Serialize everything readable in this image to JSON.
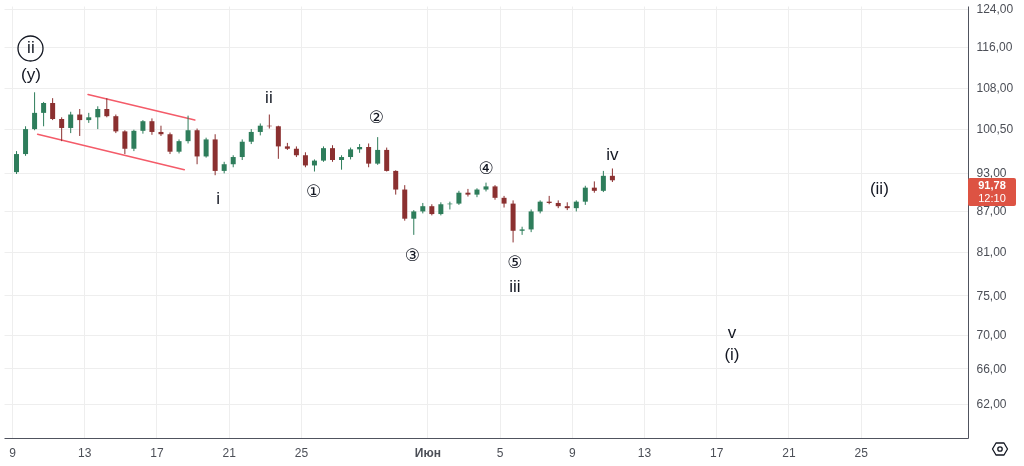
{
  "chart_data": {
    "type": "candlestick",
    "x": [
      "--05-09T06:00",
      "--05-09T18:00",
      "--05-10T06:00",
      "--05-10T18:00",
      "--05-11T06:00",
      "--05-11T18:00",
      "--05-12T06:00",
      "--05-12T18:00",
      "--05-13T06:00",
      "--05-13T18:00",
      "--05-14T06:00",
      "--05-14T18:00",
      "--05-15T06:00",
      "--05-15T18:00",
      "--05-16T06:00",
      "--05-16T18:00",
      "--05-17T06:00",
      "--05-17T18:00",
      "--05-18T06:00",
      "--05-18T18:00",
      "--05-19T06:00",
      "--05-19T18:00",
      "--05-20T06:00",
      "--05-20T18:00",
      "--05-21T06:00",
      "--05-21T18:00",
      "--05-22T06:00",
      "--05-22T18:00",
      "--05-23T06:00",
      "--05-23T18:00",
      "--05-24T06:00",
      "--05-24T18:00",
      "--05-25T06:00",
      "--05-25T18:00",
      "--05-26T06:00",
      "--05-26T18:00",
      "--05-27T06:00",
      "--05-27T18:00",
      "--05-28T06:00",
      "--05-28T18:00",
      "--05-29T06:00",
      "--05-29T18:00",
      "--05-30T06:00",
      "--05-30T18:00",
      "--05-31T06:00",
      "--05-31T18:00",
      "--06-01T06:00",
      "--06-01T18:00",
      "--06-02T06:00",
      "--06-02T18:00",
      "--06-03T06:00",
      "--06-03T18:00",
      "--06-04T06:00",
      "--06-04T18:00",
      "--06-05T06:00",
      "--06-05T18:00",
      "--06-06T06:00",
      "--06-06T18:00",
      "--06-07T06:00",
      "--06-07T18:00",
      "--06-08T06:00",
      "--06-08T18:00",
      "--06-09T06:00",
      "--06-09T18:00",
      "--06-10T06:00",
      "--06-10T18:00",
      "--06-11T06:00"
    ],
    "ohlc": [
      [
        93.1,
        96.6,
        92.8,
        96.1
      ],
      [
        96.1,
        100.9,
        95.8,
        100.4
      ],
      [
        100.4,
        107.1,
        100.2,
        103.3
      ],
      [
        103.3,
        105.3,
        100.9,
        105.1
      ],
      [
        105.1,
        106.0,
        102.0,
        102.2
      ],
      [
        102.2,
        102.5,
        98.3,
        100.6
      ],
      [
        100.6,
        103.5,
        99.7,
        103.0
      ],
      [
        103.0,
        104.0,
        99.2,
        102.0
      ],
      [
        102.0,
        103.3,
        101.5,
        102.5
      ],
      [
        102.5,
        104.5,
        100.4,
        104.0
      ],
      [
        104.0,
        106.0,
        102.5,
        102.7
      ],
      [
        102.7,
        103.0,
        99.7,
        100.0
      ],
      [
        100.0,
        100.2,
        96.1,
        97.0
      ],
      [
        97.0,
        100.3,
        96.6,
        100.1
      ],
      [
        100.1,
        102.0,
        99.6,
        101.8
      ],
      [
        101.8,
        102.3,
        99.4,
        99.9
      ],
      [
        99.9,
        101.0,
        99.2,
        99.5
      ],
      [
        99.5,
        99.8,
        96.1,
        96.5
      ],
      [
        96.5,
        98.6,
        96.2,
        98.3
      ],
      [
        98.3,
        102.8,
        97.9,
        100.2
      ],
      [
        100.2,
        100.5,
        94.4,
        95.7
      ],
      [
        95.7,
        98.9,
        95.5,
        98.6
      ],
      [
        98.6,
        99.5,
        92.6,
        93.3
      ],
      [
        93.3,
        94.8,
        92.9,
        94.4
      ],
      [
        94.4,
        95.9,
        93.9,
        95.6
      ],
      [
        95.6,
        98.6,
        95.1,
        98.2
      ],
      [
        98.2,
        100.4,
        97.8,
        99.9
      ],
      [
        99.9,
        101.4,
        99.3,
        101.0
      ],
      [
        101.0,
        103.0,
        100.5,
        100.9
      ],
      [
        100.9,
        101.0,
        95.3,
        97.4
      ],
      [
        97.4,
        98.0,
        96.8,
        97.0
      ],
      [
        97.0,
        97.4,
        95.6,
        95.9
      ],
      [
        95.9,
        96.4,
        93.9,
        94.2
      ],
      [
        94.2,
        95.2,
        93.2,
        95.0
      ],
      [
        95.0,
        97.4,
        94.8,
        97.1
      ],
      [
        97.1,
        97.6,
        94.8,
        95.1
      ],
      [
        95.1,
        95.9,
        93.5,
        95.6
      ],
      [
        95.6,
        97.2,
        95.2,
        96.9
      ],
      [
        96.9,
        97.8,
        96.3,
        97.3
      ],
      [
        97.3,
        97.9,
        93.9,
        94.5
      ],
      [
        94.5,
        99.0,
        94.3,
        96.8
      ],
      [
        96.8,
        97.2,
        93.2,
        93.3
      ],
      [
        93.3,
        93.4,
        89.5,
        90.3
      ],
      [
        90.3,
        91.0,
        85.5,
        85.8
      ],
      [
        85.8,
        87.1,
        83.4,
        86.9
      ],
      [
        86.9,
        88.2,
        86.6,
        87.7
      ],
      [
        87.7,
        88.0,
        86.3,
        86.5
      ],
      [
        86.5,
        88.3,
        86.3,
        88.0
      ],
      [
        88.0,
        88.4,
        87.2,
        88.1
      ],
      [
        88.1,
        90.1,
        87.9,
        89.8
      ],
      [
        89.8,
        90.4,
        89.2,
        89.5
      ],
      [
        89.5,
        90.5,
        89.1,
        90.3
      ],
      [
        90.3,
        91.4,
        90.0,
        90.8
      ],
      [
        90.8,
        91.0,
        88.7,
        89.0
      ],
      [
        89.0,
        89.3,
        87.5,
        88.1
      ],
      [
        88.1,
        88.6,
        82.3,
        84.0
      ],
      [
        84.0,
        84.6,
        83.4,
        84.2
      ],
      [
        84.2,
        87.2,
        83.8,
        86.9
      ],
      [
        86.9,
        88.6,
        86.6,
        88.4
      ],
      [
        88.4,
        89.3,
        88.0,
        88.2
      ],
      [
        88.2,
        88.6,
        87.4,
        87.7
      ],
      [
        87.7,
        88.3,
        87.1,
        87.4
      ],
      [
        87.4,
        88.6,
        86.9,
        88.4
      ],
      [
        88.4,
        90.9,
        87.9,
        90.6
      ],
      [
        90.6,
        91.6,
        89.8,
        90.1
      ],
      [
        90.1,
        93.3,
        89.9,
        92.5
      ],
      [
        92.5,
        93.7,
        91.5,
        91.78
      ]
    ],
    "colors": [
      "#2e7d5b",
      "#2e7d5b",
      "#2e7d5b",
      "#2e7d5b",
      "#8b3030",
      "#8b3030",
      "#2e7d5b",
      "#8b3030",
      "#2e7d5b",
      "#2e7d5b",
      "#8b3030",
      "#8b3030",
      "#8b3030",
      "#2e7d5b",
      "#2e7d5b",
      "#8b3030",
      "#8b3030",
      "#8b3030",
      "#2e7d5b",
      "#2e7d5b",
      "#8b3030",
      "#2e7d5b",
      "#8b3030",
      "#2e7d5b",
      "#2e7d5b",
      "#2e7d5b",
      "#2e7d5b",
      "#2e7d5b",
      "#8b3030",
      "#8b3030",
      "#8b3030",
      "#8b3030",
      "#8b3030",
      "#2e7d5b",
      "#2e7d5b",
      "#8b3030",
      "#2e7d5b",
      "#2e7d5b",
      "#2e7d5b",
      "#8b3030",
      "#2e7d5b",
      "#8b3030",
      "#8b3030",
      "#8b3030",
      "#2e7d5b",
      "#2e7d5b",
      "#8b3030",
      "#2e7d5b",
      "#2e7d5b",
      "#2e7d5b",
      "#8b3030",
      "#2e7d5b",
      "#2e7d5b",
      "#8b3030",
      "#8b3030",
      "#8b3030",
      "#2e7d5b",
      "#2e7d5b",
      "#2e7d5b",
      "#8b3030",
      "#8b3030",
      "#8b3030",
      "#2e7d5b",
      "#2e7d5b",
      "#8b3030",
      "#2e7d5b",
      "#8b3030"
    ],
    "series": [
      {
        "type": "line",
        "color": "#f45b69",
        "x": [
          "--05-13T05:00",
          "--05-19T03:00"
        ],
        "values": [
          106.7,
          102.0
        ]
      },
      {
        "type": "line",
        "color": "#f45b69",
        "x": [
          "--05-10T10:00",
          "--05-18T13:00"
        ],
        "values": [
          99.5,
          93.5
        ]
      }
    ],
    "xlim": [
      "--05-08T20:00",
      "--06-30T16:00"
    ],
    "xticks": [
      {
        "value": "--05-09",
        "label": "9"
      },
      {
        "value": "--05-13",
        "label": "13"
      },
      {
        "value": "--05-17",
        "label": "17"
      },
      {
        "value": "--05-21",
        "label": "21"
      },
      {
        "value": "--05-25",
        "label": "25"
      },
      {
        "value": "--06-01",
        "label": "Июн"
      },
      {
        "value": "--06-05",
        "label": "5"
      },
      {
        "value": "--06-09",
        "label": "9"
      },
      {
        "value": "--06-13",
        "label": "13"
      },
      {
        "value": "--06-17",
        "label": "17"
      },
      {
        "value": "--06-21",
        "label": "21"
      },
      {
        "value": "--06-25",
        "label": "25"
      }
    ],
    "ylim": [
      58.4,
      124.6
    ],
    "yticks": [
      {
        "value": 62,
        "label": "62,00"
      },
      {
        "value": 66,
        "label": "66,00"
      },
      {
        "value": 70,
        "label": "70,00"
      },
      {
        "value": 75,
        "label": "75,00"
      },
      {
        "value": 81,
        "label": "81,00"
      },
      {
        "value": 87,
        "label": "87,00"
      },
      {
        "value": 93,
        "label": "93,00"
      },
      {
        "value": 100.5,
        "label": "100,50"
      },
      {
        "value": 108,
        "label": "108,00"
      },
      {
        "value": 116,
        "label": "116,00"
      },
      {
        "value": 124,
        "label": "124,00"
      }
    ],
    "log": true,
    "grid": true,
    "annotations": [
      "ii",
      "(y)",
      "ii",
      "i",
      "①",
      "②",
      "③",
      "④",
      "⑤",
      "iii",
      "iv",
      "v",
      "(i)",
      "(ii)",
      "91,78",
      "12:10"
    ]
  }
}
